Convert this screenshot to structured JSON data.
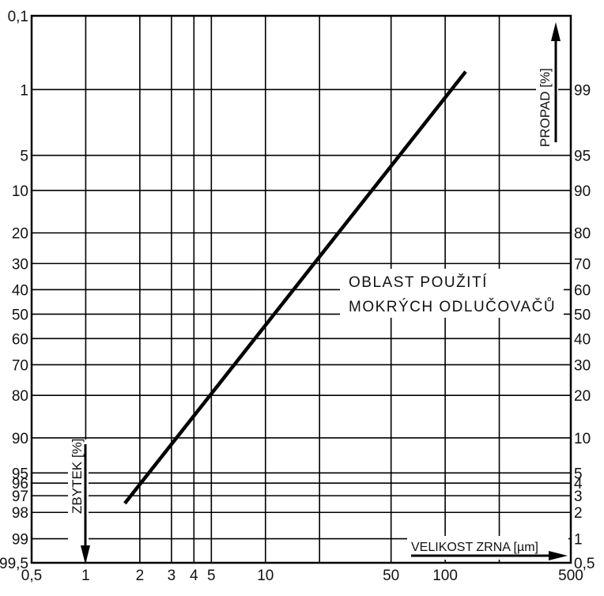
{
  "chart_data": {
    "type": "line",
    "title": "",
    "x_axis": {
      "label": "VELIKOST ZRNA [µm]",
      "scale": "log",
      "range": [
        0.5,
        500
      ],
      "ticks": [
        {
          "value": 0.5,
          "label": "0,5"
        },
        {
          "value": 1,
          "label": "1"
        },
        {
          "value": 2,
          "label": "2"
        },
        {
          "value": 3,
          "label": "3"
        },
        {
          "value": 4,
          "label": "4"
        },
        {
          "value": 5,
          "label": "5"
        },
        {
          "value": 10,
          "label": "10"
        },
        {
          "value": 50,
          "label": "50"
        },
        {
          "value": 100,
          "label": "100"
        },
        {
          "value": 500,
          "label": "500"
        }
      ],
      "unlabeled_gridlines": [
        20,
        200
      ]
    },
    "left_axis": {
      "label": "ZBYTEK [%]",
      "scale": "probability",
      "direction": "downward",
      "ticks": [
        {
          "value": 0.1,
          "label": "0,1"
        },
        {
          "value": 1,
          "label": "1"
        },
        {
          "value": 5,
          "label": "5"
        },
        {
          "value": 10,
          "label": "10"
        },
        {
          "value": 20,
          "label": "20"
        },
        {
          "value": 30,
          "label": "30"
        },
        {
          "value": 40,
          "label": "40"
        },
        {
          "value": 50,
          "label": "50"
        },
        {
          "value": 60,
          "label": "60"
        },
        {
          "value": 70,
          "label": "70"
        },
        {
          "value": 80,
          "label": "80"
        },
        {
          "value": 90,
          "label": "90"
        },
        {
          "value": 95,
          "label": "95"
        },
        {
          "value": 96,
          "label": "96"
        },
        {
          "value": 97,
          "label": "97"
        },
        {
          "value": 98,
          "label": "98"
        },
        {
          "value": 99,
          "label": "99"
        },
        {
          "value": 99.5,
          "label": "99,5"
        }
      ]
    },
    "right_axis": {
      "label": "PROPAD [%]",
      "scale": "probability",
      "direction": "upward",
      "ticks": [
        {
          "value": 99,
          "label": "99"
        },
        {
          "value": 95,
          "label": "95"
        },
        {
          "value": 90,
          "label": "90"
        },
        {
          "value": 80,
          "label": "80"
        },
        {
          "value": 70,
          "label": "70"
        },
        {
          "value": 60,
          "label": "60"
        },
        {
          "value": 50,
          "label": "50"
        },
        {
          "value": 40,
          "label": "40"
        },
        {
          "value": 30,
          "label": "30"
        },
        {
          "value": 20,
          "label": "20"
        },
        {
          "value": 10,
          "label": "10"
        },
        {
          "value": 5,
          "label": "5"
        },
        {
          "value": 4,
          "label": "4"
        },
        {
          "value": 3,
          "label": "3"
        },
        {
          "value": 2,
          "label": "2"
        },
        {
          "value": 1,
          "label": "1"
        },
        {
          "value": 0.5,
          "label": "0,5"
        }
      ]
    },
    "series": [
      {
        "name": "",
        "points": [
          {
            "x": 1.65,
            "zbytek": 97.5
          },
          {
            "x": 130,
            "zbytek": 0.6
          }
        ]
      }
    ],
    "annotation": {
      "lines": [
        "OBLAST POUŽITÍ",
        "MOKRÝCH ODLUČOVAČŮ"
      ]
    },
    "grid": true,
    "line_color": "#000000"
  }
}
